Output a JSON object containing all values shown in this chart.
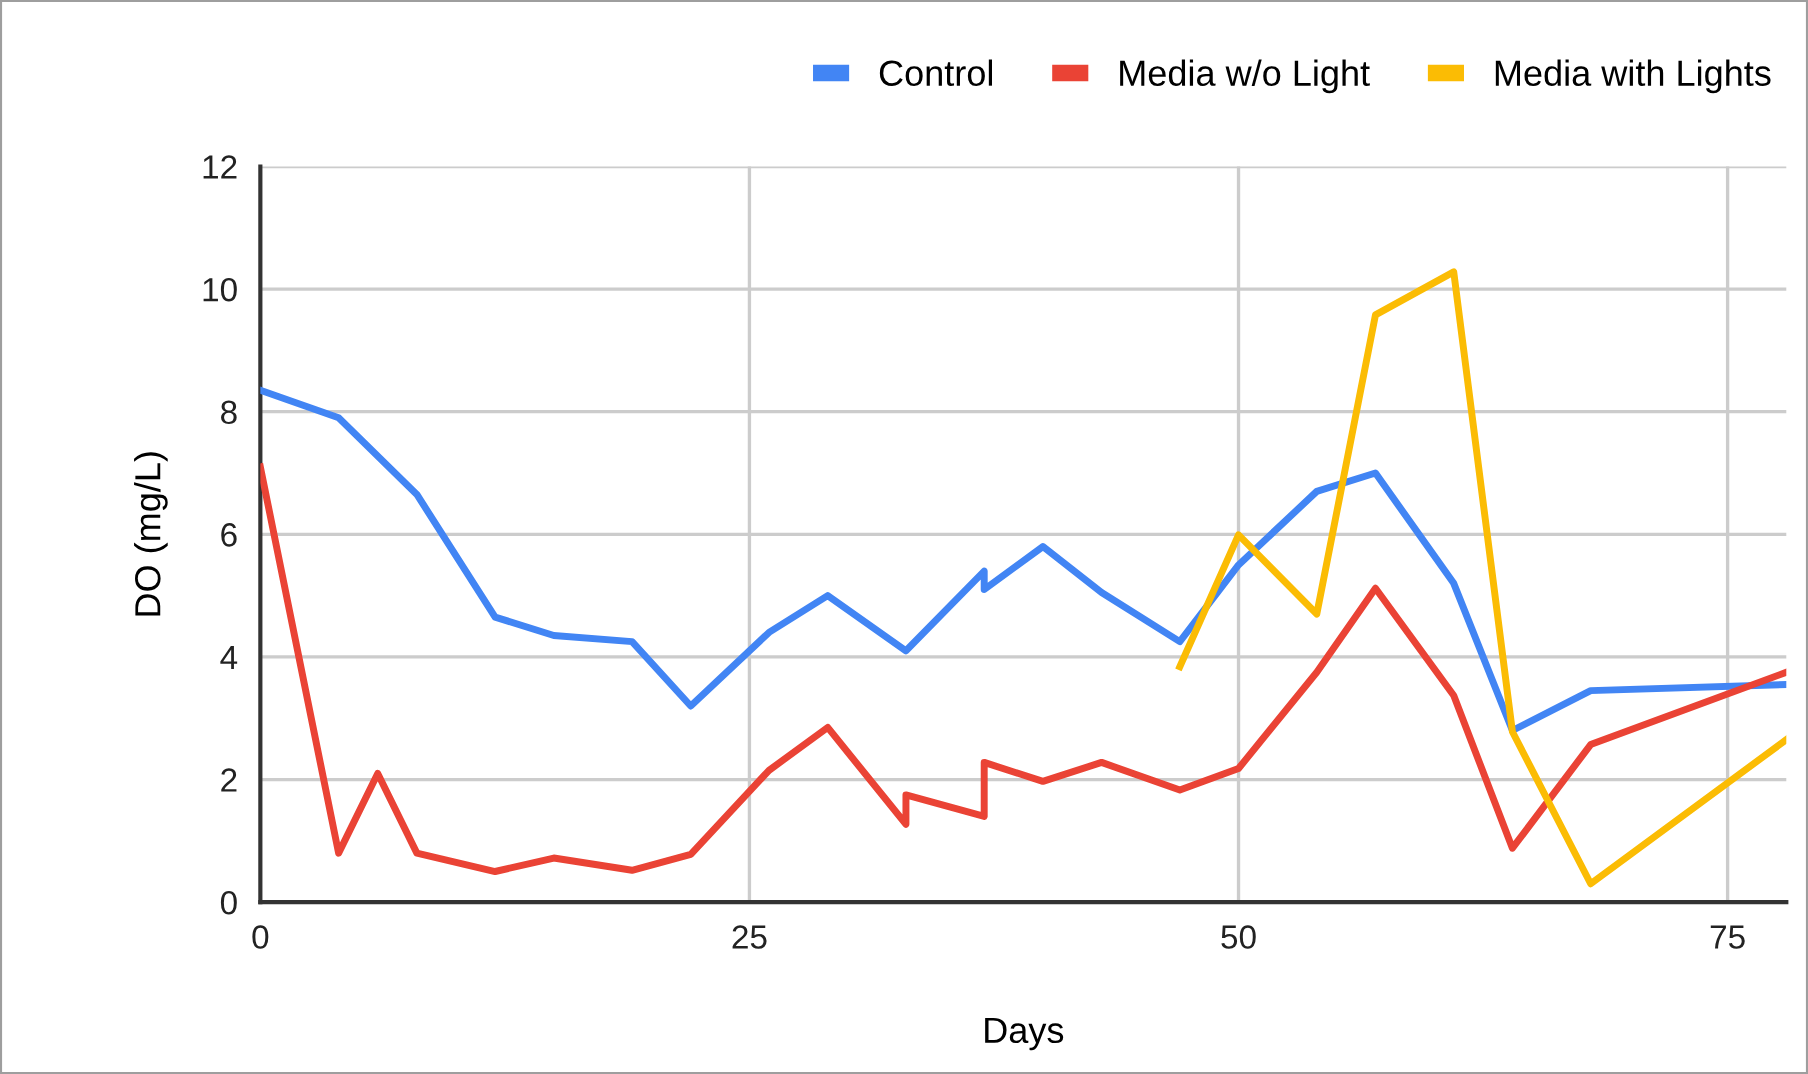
{
  "chart_data": {
    "type": "line",
    "xlabel": "Days",
    "ylabel": "DO (mg/L)",
    "xlim": [
      0,
      78
    ],
    "xticks": [
      0,
      25,
      50,
      75
    ],
    "ylim": [
      0,
      12
    ],
    "yticks": [
      0,
      2,
      4,
      6,
      8,
      10,
      12
    ],
    "grid": true,
    "legend": "top right",
    "marker": "none",
    "line_style": "solid",
    "series": [
      {
        "name": "Control",
        "color": "#4285f4",
        "x": [
          0,
          4,
          8,
          12,
          15,
          19,
          22,
          26,
          29,
          33,
          37,
          37,
          40,
          43,
          47,
          50,
          54,
          57,
          61,
          64,
          68,
          78
        ],
        "values": [
          8.35,
          7.9,
          6.65,
          4.65,
          4.35,
          4.25,
          3.2,
          4.4,
          5.0,
          4.1,
          5.4,
          5.1,
          5.8,
          5.05,
          4.25,
          5.5,
          6.7,
          7.0,
          5.2,
          2.8,
          3.45,
          3.55
        ]
      },
      {
        "name": "Media w/o Light",
        "color": "#ea4335",
        "x": [
          0,
          4,
          6,
          8,
          12,
          15,
          19,
          22,
          26,
          29,
          33,
          33,
          37,
          37,
          40,
          43,
          47,
          50,
          54,
          57,
          61,
          64,
          68,
          78
        ],
        "values": [
          7.1,
          0.8,
          2.1,
          0.8,
          0.5,
          0.72,
          0.52,
          0.78,
          2.15,
          2.85,
          1.27,
          1.75,
          1.4,
          2.28,
          1.97,
          2.28,
          1.83,
          2.18,
          3.75,
          5.12,
          3.37,
          0.88,
          2.57,
          3.75
        ]
      },
      {
        "name": "Media with Lights",
        "color": "#fbbc04",
        "x": [
          47,
          50,
          54,
          57,
          61,
          64,
          68,
          78
        ],
        "values": [
          3.84,
          5.99,
          4.7,
          9.58,
          10.28,
          2.78,
          0.3,
          2.65
        ]
      }
    ]
  }
}
